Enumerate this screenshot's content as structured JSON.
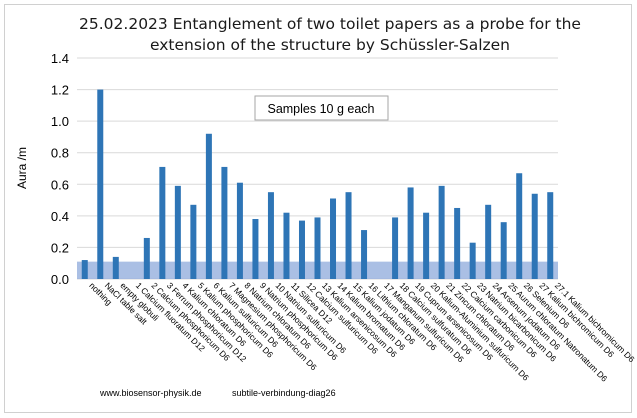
{
  "chart_data": {
    "type": "bar",
    "title_line1": "25.02.2023 Entanglement of two toilet papers as a probe for the",
    "title_line2": "extension of the structure by Schüssler-Salzen",
    "ylabel": "Aura /m",
    "xlabel": "",
    "ylim": [
      0,
      1.4
    ],
    "yticks": [
      "0.0",
      "0.2",
      "0.4",
      "0.6",
      "0.8",
      "1.0",
      "1.2",
      "1.4"
    ],
    "grid": true,
    "annotation": "Samples 10 g each",
    "baseline_band": 0.11,
    "bar_color": "#2e75b6",
    "band_color": "#8eaadb",
    "categories": [
      "nothing",
      "NaCl table salt",
      "empty globuli",
      "1 Calcium fluoratum D12",
      "2 Calcium phosphoricum D6",
      "3 Ferrum phosphoricum D12",
      "4 Kalium chloratum D6",
      "5 Kalium phosphoricum D6",
      "6 Kalium sulfuricum D6",
      "7 Magnesium phosphoricum D6",
      "8 Natrium chloratum D6",
      "9 Natrium phosphoricum D6",
      "10 Natrium sulfuricum D6",
      "11 Silicea D12",
      "12 Calcium sulfuricum D6",
      "13 Kalium arsenicosum D6",
      "14 Kalium bromatum D6",
      "15 Kalium jodatum D6",
      "16 Lithium chloratum D6",
      "17 Manganum sulfuricum D6",
      "18 Calcium sulfuratum D6",
      "19 Cuprum arsenicosum D6",
      "20 Kalium-Aluminium sulfuricum D6",
      "21 Zincum chloratum D6",
      "22 Calcium carbonicum D6",
      "23 Natrium bicarbonicum D6",
      "24 Arsenum jodatum D6",
      "25 Aurum chloratum Natronatum D6",
      "26 Selenium D6",
      "27 Kalium bichromicum D6",
      "27.1 Kalium bichromicum D6"
    ],
    "values": [
      0.12,
      1.2,
      0.14,
      0.0,
      0.26,
      0.71,
      0.59,
      0.47,
      0.92,
      0.71,
      0.61,
      0.38,
      0.55,
      0.42,
      0.37,
      0.39,
      0.51,
      0.55,
      0.31,
      0.0,
      0.39,
      0.58,
      0.42,
      0.59,
      0.45,
      0.23,
      0.47,
      0.36,
      0.67,
      0.54,
      0.55
    ]
  },
  "footer": {
    "left": "www.biosensor-physik.de",
    "right": "subtile-verbindung-diag26"
  }
}
